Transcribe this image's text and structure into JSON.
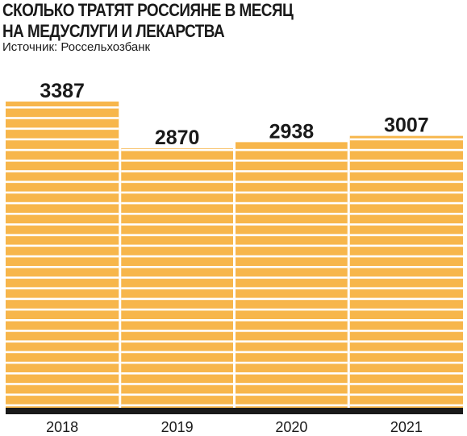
{
  "header": {
    "title_line1": "СКОЛЬКО ТРАТЯТ РОССИЯНЕ В МЕСЯЦ",
    "title_line2": "НА МЕДУСЛУГИ И ЛЕКАРСТВА",
    "source": "Источник: Россельхозбанк"
  },
  "colors": {
    "bar": "#f7b64b",
    "stripe": "#ffffff",
    "baseline": "#1a1a1a",
    "text": "#1a1a1a"
  },
  "chart_data": {
    "type": "bar",
    "title": "СКОЛЬКО ТРАТЯТ РОССИЯНЕ В МЕСЯЦ НА МЕДУСЛУГИ И ЛЕКАРСТВА",
    "subtitle": "Источник: Россельхозбанк",
    "categories": [
      "2018",
      "2019",
      "2020",
      "2021"
    ],
    "values": [
      3387,
      2870,
      2938,
      3007
    ],
    "data_labels": [
      "3387",
      "2870",
      "2938",
      "3007"
    ],
    "xlabel": "",
    "ylabel": "",
    "ylim": [
      0,
      3387
    ],
    "grid": false,
    "legend": "none"
  }
}
